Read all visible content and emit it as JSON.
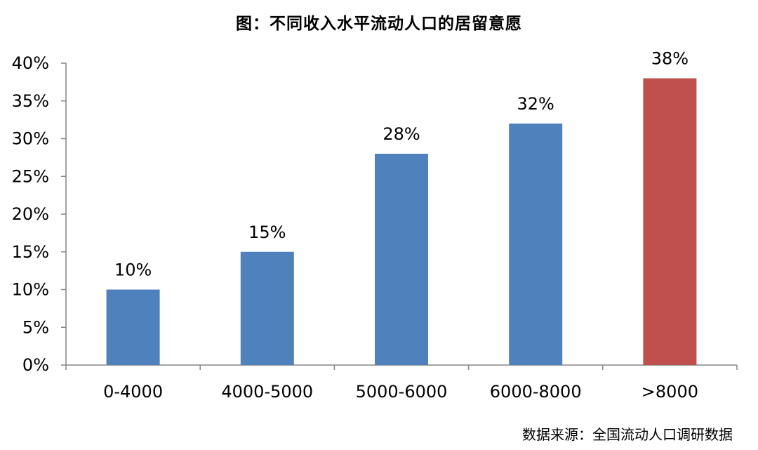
{
  "chart_data": {
    "type": "bar",
    "title": "图：不同收入水平流动人口的居留意愿",
    "categories": [
      "0-4000",
      "4000-5000",
      "5000-6000",
      "6000-8000",
      ">8000"
    ],
    "values": [
      10,
      15,
      28,
      32,
      38
    ],
    "data_labels": [
      "10%",
      "15%",
      "28%",
      "32%",
      "38%"
    ],
    "bar_colors": [
      "#4f81bd",
      "#4f81bd",
      "#4f81bd",
      "#4f81bd",
      "#c0504d"
    ],
    "ylim": [
      0,
      40
    ],
    "yticks": [
      0,
      5,
      10,
      15,
      20,
      25,
      30,
      35,
      40
    ],
    "ytick_labels": [
      "0%",
      "5%",
      "10%",
      "15%",
      "20%",
      "25%",
      "30%",
      "35%",
      "40%"
    ],
    "xlabel": "",
    "ylabel": "",
    "grid": false,
    "legend": "none"
  },
  "source": "数据来源：全国流动人口调研数据"
}
